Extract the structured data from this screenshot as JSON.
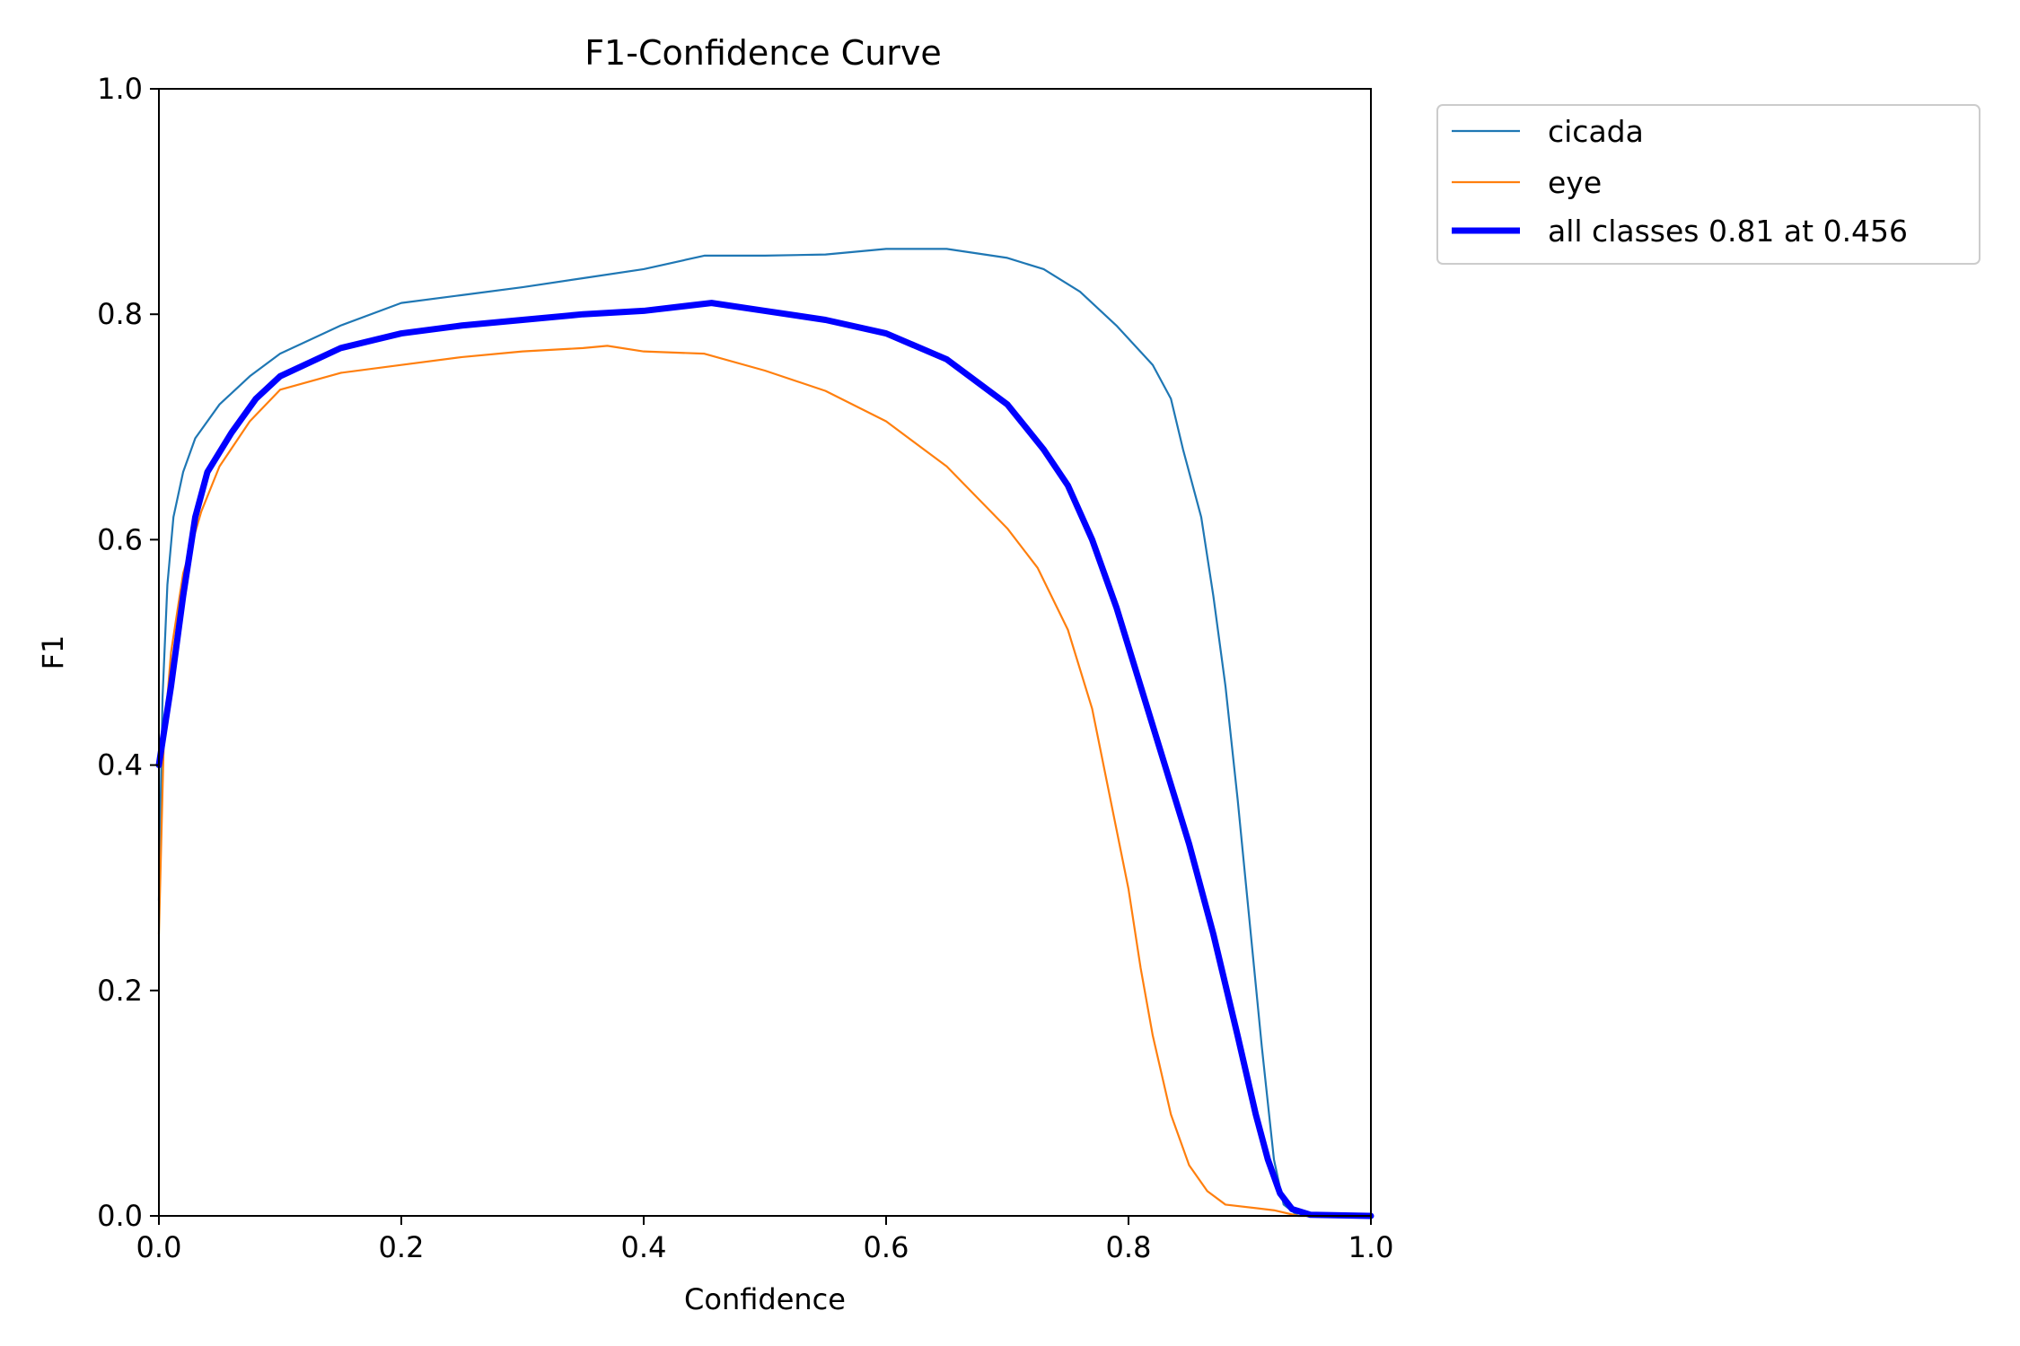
{
  "chart_data": {
    "type": "line",
    "title": "F1-Confidence Curve",
    "xlabel": "Confidence",
    "ylabel": "F1",
    "xlim": [
      0.0,
      1.0
    ],
    "ylim": [
      0.0,
      1.0
    ],
    "x_ticks": [
      "0.0",
      "0.2",
      "0.4",
      "0.6",
      "0.8",
      "1.0"
    ],
    "y_ticks": [
      "0.0",
      "0.2",
      "0.4",
      "0.6",
      "0.8",
      "1.0"
    ],
    "grid": false,
    "legend_position": "outside upper right",
    "series": [
      {
        "name": "cicada",
        "color": "#1f77b4",
        "line": "thin",
        "points": [
          [
            0.0,
            0.28
          ],
          [
            0.003,
            0.46
          ],
          [
            0.007,
            0.56
          ],
          [
            0.012,
            0.62
          ],
          [
            0.02,
            0.66
          ],
          [
            0.03,
            0.69
          ],
          [
            0.05,
            0.72
          ],
          [
            0.075,
            0.745
          ],
          [
            0.1,
            0.765
          ],
          [
            0.15,
            0.79
          ],
          [
            0.2,
            0.81
          ],
          [
            0.25,
            0.817
          ],
          [
            0.3,
            0.824
          ],
          [
            0.35,
            0.832
          ],
          [
            0.4,
            0.84
          ],
          [
            0.45,
            0.852
          ],
          [
            0.5,
            0.852
          ],
          [
            0.55,
            0.853
          ],
          [
            0.6,
            0.858
          ],
          [
            0.65,
            0.858
          ],
          [
            0.7,
            0.85
          ],
          [
            0.73,
            0.84
          ],
          [
            0.76,
            0.82
          ],
          [
            0.79,
            0.79
          ],
          [
            0.82,
            0.755
          ],
          [
            0.835,
            0.725
          ],
          [
            0.845,
            0.68
          ],
          [
            0.86,
            0.62
          ],
          [
            0.87,
            0.55
          ],
          [
            0.88,
            0.47
          ],
          [
            0.89,
            0.37
          ],
          [
            0.9,
            0.26
          ],
          [
            0.91,
            0.15
          ],
          [
            0.92,
            0.05
          ],
          [
            0.928,
            0.01
          ],
          [
            0.94,
            0.0
          ],
          [
            1.0,
            0.0
          ]
        ]
      },
      {
        "name": "eye",
        "color": "#ff7f0e",
        "line": "thin",
        "points": [
          [
            0.0,
            0.25
          ],
          [
            0.004,
            0.42
          ],
          [
            0.01,
            0.5
          ],
          [
            0.02,
            0.57
          ],
          [
            0.035,
            0.625
          ],
          [
            0.05,
            0.665
          ],
          [
            0.075,
            0.705
          ],
          [
            0.1,
            0.733
          ],
          [
            0.15,
            0.748
          ],
          [
            0.2,
            0.755
          ],
          [
            0.25,
            0.762
          ],
          [
            0.3,
            0.767
          ],
          [
            0.35,
            0.77
          ],
          [
            0.37,
            0.772
          ],
          [
            0.4,
            0.767
          ],
          [
            0.45,
            0.765
          ],
          [
            0.5,
            0.75
          ],
          [
            0.55,
            0.732
          ],
          [
            0.6,
            0.705
          ],
          [
            0.65,
            0.665
          ],
          [
            0.7,
            0.61
          ],
          [
            0.725,
            0.575
          ],
          [
            0.75,
            0.52
          ],
          [
            0.77,
            0.45
          ],
          [
            0.785,
            0.37
          ],
          [
            0.8,
            0.29
          ],
          [
            0.81,
            0.22
          ],
          [
            0.82,
            0.16
          ],
          [
            0.835,
            0.09
          ],
          [
            0.85,
            0.045
          ],
          [
            0.865,
            0.022
          ],
          [
            0.88,
            0.01
          ],
          [
            0.92,
            0.005
          ],
          [
            0.94,
            0.0
          ],
          [
            1.0,
            0.0
          ]
        ]
      },
      {
        "name": "all classes 0.81 at 0.456",
        "color": "#0000ff",
        "line": "thick",
        "points": [
          [
            0.0,
            0.4
          ],
          [
            0.01,
            0.47
          ],
          [
            0.02,
            0.55
          ],
          [
            0.03,
            0.62
          ],
          [
            0.04,
            0.66
          ],
          [
            0.06,
            0.695
          ],
          [
            0.08,
            0.725
          ],
          [
            0.1,
            0.745
          ],
          [
            0.15,
            0.77
          ],
          [
            0.2,
            0.783
          ],
          [
            0.25,
            0.79
          ],
          [
            0.3,
            0.795
          ],
          [
            0.35,
            0.8
          ],
          [
            0.4,
            0.803
          ],
          [
            0.456,
            0.81
          ],
          [
            0.5,
            0.803
          ],
          [
            0.55,
            0.795
          ],
          [
            0.6,
            0.783
          ],
          [
            0.65,
            0.76
          ],
          [
            0.7,
            0.72
          ],
          [
            0.73,
            0.68
          ],
          [
            0.75,
            0.648
          ],
          [
            0.77,
            0.6
          ],
          [
            0.79,
            0.54
          ],
          [
            0.81,
            0.47
          ],
          [
            0.83,
            0.4
          ],
          [
            0.85,
            0.33
          ],
          [
            0.87,
            0.25
          ],
          [
            0.89,
            0.16
          ],
          [
            0.905,
            0.09
          ],
          [
            0.915,
            0.05
          ],
          [
            0.925,
            0.02
          ],
          [
            0.935,
            0.006
          ],
          [
            0.95,
            0.001
          ],
          [
            1.0,
            0.0
          ]
        ]
      }
    ]
  }
}
